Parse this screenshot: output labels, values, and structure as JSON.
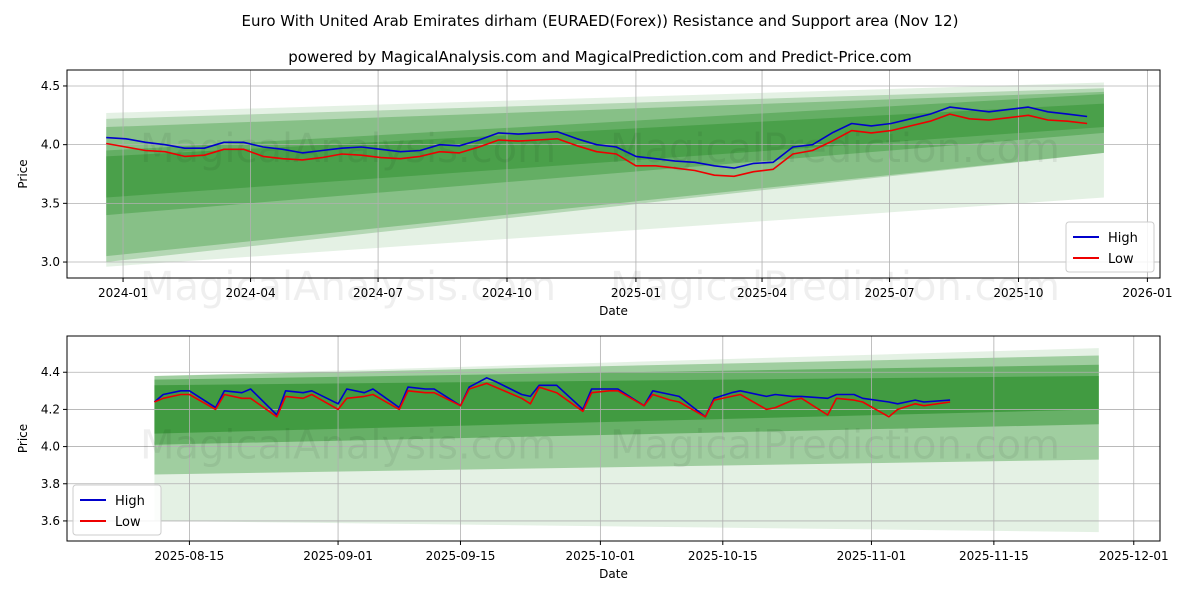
{
  "title": "Euro With United Arab Emirates dirham (EURAED(Forex)) Resistance and Support area (Nov 12)",
  "subtitle": "powered by MagicalAnalysis.com and MagicalPrediction.com and Predict-Price.com",
  "colors": {
    "high": "#0000cc",
    "low": "#ee0000",
    "band": "#228b22"
  },
  "chart_data": [
    {
      "type": "line",
      "xlabel": "Date",
      "ylabel": "Price",
      "ylim": [
        2.864,
        4.636
      ],
      "xlim": [
        "2023-11-22",
        "2026-01-10"
      ],
      "yticks": [
        3.0,
        3.5,
        4.0,
        4.5
      ],
      "ytick_labels": [
        "3.0",
        "3.5",
        "4.0",
        "4.5"
      ],
      "xticks": [
        "2024-01-01",
        "2024-04-01",
        "2024-07-01",
        "2024-10-01",
        "2025-01-01",
        "2025-04-01",
        "2025-07-01",
        "2025-10-01",
        "2026-01-01"
      ],
      "xtick_labels": [
        "2024-01",
        "2024-04",
        "2024-07",
        "2024-10",
        "2025-01",
        "2025-04",
        "2025-07",
        "2025-10",
        "2026-01"
      ],
      "grid": true,
      "legend": {
        "position": "bottom-right",
        "entries": [
          "High",
          "Low"
        ]
      },
      "watermarks": [
        "MagicalAnalysis.com",
        "MagicalPrediction.com"
      ],
      "series_start": "2023-12-20",
      "series_step_days": 14,
      "series": [
        {
          "name": "High",
          "values": [
            4.06,
            4.05,
            4.02,
            4.0,
            3.97,
            3.97,
            4.02,
            4.02,
            3.98,
            3.96,
            3.93,
            3.95,
            3.97,
            3.98,
            3.96,
            3.94,
            3.95,
            4.0,
            3.99,
            4.04,
            4.1,
            4.09,
            4.1,
            4.11,
            4.05,
            4.0,
            3.98,
            3.9,
            3.88,
            3.86,
            3.85,
            3.82,
            3.8,
            3.84,
            3.85,
            3.98,
            4.0,
            4.1,
            4.18,
            4.16,
            4.18,
            4.22,
            4.26,
            4.32,
            4.3,
            4.28,
            4.3,
            4.32,
            4.28,
            4.26,
            4.24
          ]
        },
        {
          "name": "Low",
          "values": [
            4.01,
            3.98,
            3.95,
            3.94,
            3.9,
            3.91,
            3.96,
            3.96,
            3.9,
            3.88,
            3.87,
            3.89,
            3.92,
            3.91,
            3.89,
            3.88,
            3.9,
            3.94,
            3.93,
            3.98,
            4.04,
            4.03,
            4.04,
            4.05,
            3.99,
            3.94,
            3.92,
            3.82,
            3.82,
            3.8,
            3.78,
            3.74,
            3.73,
            3.77,
            3.79,
            3.92,
            3.95,
            4.03,
            4.12,
            4.1,
            4.12,
            4.16,
            4.2,
            4.26,
            4.22,
            4.21,
            4.23,
            4.25,
            4.21,
            4.2,
            4.18
          ]
        }
      ],
      "bands": {
        "start": "2023-12-20",
        "end": "2025-12-01",
        "items": [
          {
            "lower": [
              2.96,
              3.55
            ],
            "upper": [
              4.27,
              4.53
            ],
            "opacity": 0.12
          },
          {
            "lower": [
              3.0,
              3.93
            ],
            "upper": [
              4.22,
              4.48
            ],
            "opacity": 0.25
          },
          {
            "lower": [
              3.05,
              3.93
            ],
            "upper": [
              4.15,
              4.45
            ],
            "opacity": 0.3
          },
          {
            "lower": [
              3.4,
              4.1
            ],
            "upper": [
              3.95,
              4.43
            ],
            "opacity": 0.35
          },
          {
            "lower": [
              3.55,
              4.15
            ],
            "upper": [
              3.9,
              4.35
            ],
            "opacity": 0.4
          }
        ]
      }
    },
    {
      "type": "line",
      "xlabel": "Date",
      "ylabel": "Price",
      "ylim": [
        3.492,
        4.595
      ],
      "xlim": [
        "2025-08-01",
        "2025-12-04"
      ],
      "yticks": [
        3.6,
        3.8,
        4.0,
        4.2,
        4.4
      ],
      "ytick_labels": [
        "3.6",
        "3.8",
        "4.0",
        "4.2",
        "4.4"
      ],
      "xticks": [
        "2025-08-15",
        "2025-09-01",
        "2025-09-15",
        "2025-10-01",
        "2025-10-15",
        "2025-11-01",
        "2025-11-15",
        "2025-12-01"
      ],
      "xtick_labels": [
        "2025-08-15",
        "2025-09-01",
        "2025-09-15",
        "2025-10-01",
        "2025-10-15",
        "2025-11-01",
        "2025-11-15",
        "2025-12-01"
      ],
      "grid": true,
      "legend": {
        "position": "bottom-left",
        "entries": [
          "High",
          "Low"
        ]
      },
      "watermarks": [
        "MagicalAnalysis.com",
        "MagicalPrediction.com"
      ],
      "dates": [
        "2025-08-11",
        "2025-08-12",
        "2025-08-14",
        "2025-08-15",
        "2025-08-18",
        "2025-08-19",
        "2025-08-21",
        "2025-08-22",
        "2025-08-25",
        "2025-08-26",
        "2025-08-28",
        "2025-08-29",
        "2025-09-01",
        "2025-09-02",
        "2025-09-04",
        "2025-09-05",
        "2025-09-08",
        "2025-09-09",
        "2025-09-11",
        "2025-09-12",
        "2025-09-15",
        "2025-09-16",
        "2025-09-18",
        "2025-09-19",
        "2025-09-22",
        "2025-09-23",
        "2025-09-24",
        "2025-09-26",
        "2025-09-29",
        "2025-09-30",
        "2025-10-02",
        "2025-10-03",
        "2025-10-06",
        "2025-10-07",
        "2025-10-09",
        "2025-10-10",
        "2025-10-13",
        "2025-10-14",
        "2025-10-16",
        "2025-10-17",
        "2025-10-20",
        "2025-10-21",
        "2025-10-23",
        "2025-10-24",
        "2025-10-27",
        "2025-10-28",
        "2025-10-30",
        "2025-10-31",
        "2025-11-03",
        "2025-11-04",
        "2025-11-06",
        "2025-11-07",
        "2025-11-10"
      ],
      "series": [
        {
          "name": "High",
          "values": [
            4.24,
            4.28,
            4.3,
            4.3,
            4.21,
            4.3,
            4.29,
            4.31,
            4.17,
            4.3,
            4.29,
            4.3,
            4.23,
            4.31,
            4.29,
            4.31,
            4.21,
            4.32,
            4.31,
            4.31,
            4.22,
            4.32,
            4.37,
            4.35,
            4.28,
            4.27,
            4.33,
            4.33,
            4.2,
            4.31,
            4.31,
            4.31,
            4.22,
            4.3,
            4.28,
            4.27,
            4.16,
            4.26,
            4.29,
            4.3,
            4.27,
            4.28,
            4.27,
            4.27,
            4.26,
            4.28,
            4.28,
            4.26,
            4.24,
            4.23,
            4.25,
            4.24,
            4.25
          ]
        },
        {
          "name": "Low",
          "values": [
            4.24,
            4.26,
            4.28,
            4.28,
            4.2,
            4.28,
            4.26,
            4.26,
            4.16,
            4.27,
            4.26,
            4.28,
            4.2,
            4.26,
            4.27,
            4.28,
            4.2,
            4.3,
            4.29,
            4.29,
            4.22,
            4.31,
            4.34,
            4.32,
            4.26,
            4.23,
            4.32,
            4.29,
            4.19,
            4.29,
            4.3,
            4.3,
            4.22,
            4.28,
            4.25,
            4.24,
            4.16,
            4.25,
            4.27,
            4.28,
            4.2,
            4.21,
            4.25,
            4.26,
            4.17,
            4.26,
            4.25,
            4.24,
            4.16,
            4.2,
            4.23,
            4.22,
            4.24
          ]
        }
      ],
      "bands": {
        "start": "2025-08-11",
        "end": "2025-11-27",
        "items": [
          {
            "lower": [
              3.6,
              3.54
            ],
            "upper": [
              4.38,
              4.53
            ],
            "opacity": 0.12
          },
          {
            "lower": [
              3.85,
              3.93
            ],
            "upper": [
              4.38,
              4.49
            ],
            "opacity": 0.35
          },
          {
            "lower": [
              4.01,
              4.12
            ],
            "upper": [
              4.36,
              4.44
            ],
            "opacity": 0.45
          },
          {
            "lower": [
              4.07,
              4.2
            ],
            "upper": [
              4.33,
              4.38
            ],
            "opacity": 0.55
          }
        ]
      }
    }
  ]
}
